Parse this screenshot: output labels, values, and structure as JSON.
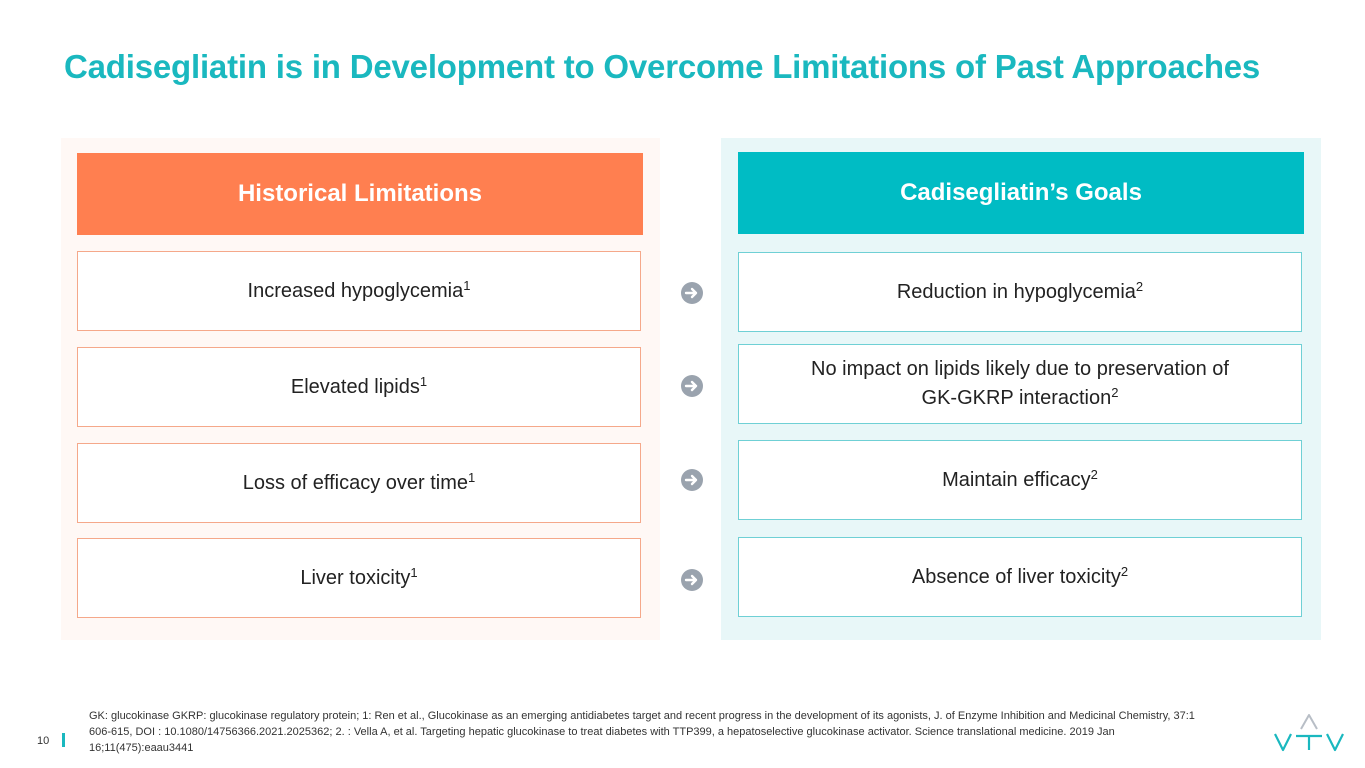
{
  "title": "Cadisegliatin is in Development to Overcome Limitations of Past Approaches",
  "left": {
    "header": "Historical Limitations",
    "items": [
      {
        "text": "Increased hypoglycemia",
        "ref": "1"
      },
      {
        "text": "Elevated lipids",
        "ref": "1"
      },
      {
        "text": "Loss of efficacy over time",
        "ref": "1"
      },
      {
        "text": "Liver toxicity",
        "ref": "1"
      }
    ]
  },
  "right": {
    "header": "Cadisegliatin’s Goals",
    "items": [
      {
        "text": "Reduction in hypoglycemia",
        "ref": "2"
      },
      {
        "text": "No impact on lipids likely due to preservation of",
        "text2": "GK-GKRP interaction",
        "ref": "2"
      },
      {
        "text": "Maintain efficacy",
        "ref": "2"
      },
      {
        "text": "Absence of liver toxicity",
        "ref": "2"
      }
    ]
  },
  "arrows": [
    "arrow-right-icon",
    "arrow-right-icon",
    "arrow-right-icon",
    "arrow-right-icon"
  ],
  "footnote": "GK: glucokinase GKRP: glucokinase regulatory protein; 1: Ren et al., Glucokinase as an emerging antidiabetes target and recent progress in the development of its agonists, J. of Enzyme Inhibition and Medicinal Chemistry, 37:1 606-615, DOI : 10.1080/14756366.2021.2025362; 2. : Vella A, et al. Targeting hepatic glucokinase to treat diabetes with TTP399, a hepatoselective glucokinase activator. Science translational medicine. 2019 Jan 16;11(475):eaau3441",
  "page_number": "10",
  "logo_text": "VTV",
  "colors": {
    "teal": "#1ab8bf",
    "orange": "#ff7f50",
    "arrow": "#9aa3ae"
  }
}
